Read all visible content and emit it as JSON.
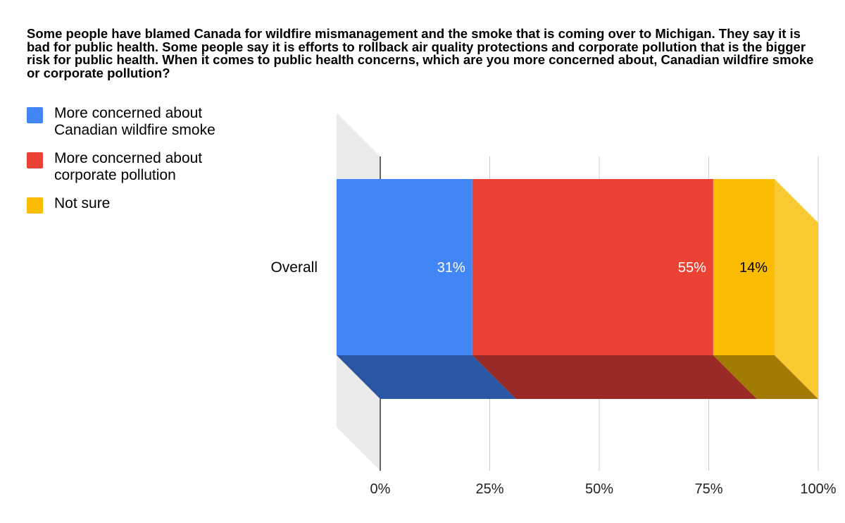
{
  "title": "Some people have blamed Canada for wildfire mismanagement and the smoke that is coming over to Michigan. They say it is bad for public health. Some people say it is efforts to rollback air quality protections and corporate pollution that is the bigger risk for public health. When it comes to public health concerns, which are you more concerned about, Canadian wildfire smoke or corporate pollution?",
  "legend": [
    {
      "label": "More concerned about Canadian wildfire smoke",
      "color": "#4285f4"
    },
    {
      "label": "More concerned about corporate pollution",
      "color": "#ea4335"
    },
    {
      "label": "Not sure",
      "color": "#fbbc04"
    }
  ],
  "chart_data": {
    "type": "bar",
    "orientation": "horizontal",
    "stacked": "percent",
    "three_d": true,
    "categories": [
      "Overall"
    ],
    "series": [
      {
        "name": "More concerned about Canadian wildfire smoke",
        "values": [
          31
        ],
        "label": "31%",
        "color": "#4285f4",
        "shade": "#2a56a3",
        "label_color": "#ffffff"
      },
      {
        "name": "More concerned about corporate pollution",
        "values": [
          55
        ],
        "label": "55%",
        "color": "#ea4335",
        "shade": "#992a26",
        "label_color": "#ffffff"
      },
      {
        "name": "Not sure",
        "values": [
          14
        ],
        "label": "14%",
        "color": "#fbbc04",
        "shade": "#a37a03",
        "side": "#fbc932",
        "label_color": "#000000"
      }
    ],
    "xlim": [
      0,
      100
    ],
    "xticks": [
      0,
      25,
      50,
      75,
      100
    ],
    "xtick_labels": [
      "0%",
      "25%",
      "50%",
      "75%",
      "100%"
    ],
    "grid": true,
    "legend_position": "top-left"
  }
}
